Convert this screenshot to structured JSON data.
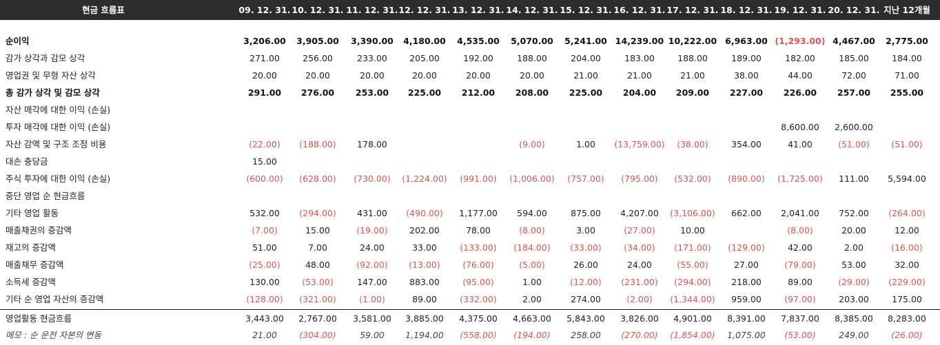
{
  "table": {
    "title": "현금 흐름표",
    "columns": [
      "09. 12. 31.",
      "10. 12. 31.",
      "11. 12. 31.",
      "12. 12. 31.",
      "13. 12. 31.",
      "14. 12. 31.",
      "15. 12. 31.",
      "16. 12. 31.",
      "17. 12. 31.",
      "18. 12. 31.",
      "19. 12. 31.",
      "20. 12. 31.",
      "지난 12개월"
    ],
    "rows": [
      {
        "label": "순이익",
        "style": "bold",
        "values": [
          "3,206.00",
          "3,905.00",
          "3,390.00",
          "4,180.00",
          "4,535.00",
          "5,070.00",
          "5,241.00",
          "14,239.00",
          "10,222.00",
          "6,963.00",
          "(1,293.00)",
          "4,467.00",
          "2,775.00"
        ]
      },
      {
        "label": "감가 상각과 감모 상각",
        "style": "normal",
        "values": [
          "271.00",
          "256.00",
          "233.00",
          "205.00",
          "192.00",
          "188.00",
          "204.00",
          "183.00",
          "188.00",
          "189.00",
          "182.00",
          "185.00",
          "184.00"
        ]
      },
      {
        "label": "영업권 및 무형 자산 상각",
        "style": "normal",
        "values": [
          "20.00",
          "20.00",
          "20.00",
          "20.00",
          "20.00",
          "20.00",
          "21.00",
          "21.00",
          "21.00",
          "38.00",
          "44.00",
          "72.00",
          "71.00"
        ]
      },
      {
        "label": "총 감가 상각 및 감모 상각",
        "style": "bold",
        "values": [
          "291.00",
          "276.00",
          "253.00",
          "225.00",
          "212.00",
          "208.00",
          "225.00",
          "204.00",
          "209.00",
          "227.00",
          "226.00",
          "257.00",
          "255.00"
        ]
      },
      {
        "label": "자산 매각에 대한 이익 (손실)",
        "style": "normal",
        "values": [
          "",
          "",
          "",
          "",
          "",
          "",
          "",
          "",
          "",
          "",
          "",
          "",
          ""
        ]
      },
      {
        "label": "투자 매각에 대한 이익 (손실)",
        "style": "normal",
        "values": [
          "",
          "",
          "",
          "",
          "",
          "",
          "",
          "",
          "",
          "",
          "8,600.00",
          "2,600.00",
          ""
        ]
      },
      {
        "label": "자산 감액 및 구조 조정 비용",
        "style": "normal",
        "values": [
          "(22.00)",
          "(188.00)",
          "178.00",
          "",
          "",
          "(9.00)",
          "1.00",
          "(13,759.00)",
          "(38.00)",
          "354.00",
          "41.00",
          "(51.00)",
          "(51.00)"
        ]
      },
      {
        "label": "대손 충당금",
        "style": "normal",
        "values": [
          "15.00",
          "",
          "",
          "",
          "",
          "",
          "",
          "",
          "",
          "",
          "",
          "",
          ""
        ]
      },
      {
        "label": "주식 투자에 대한 이익 (손실)",
        "style": "normal",
        "values": [
          "(600.00)",
          "(628.00)",
          "(730.00)",
          "(1,224.00)",
          "(991.00)",
          "(1,006.00)",
          "(757.00)",
          "(795.00)",
          "(532.00)",
          "(890.00)",
          "(1,725.00)",
          "111.00",
          "5,594.00"
        ]
      },
      {
        "label": "중단 영업 순 현금흐름",
        "style": "normal",
        "values": [
          "",
          "",
          "",
          "",
          "",
          "",
          "",
          "",
          "",
          "",
          "",
          "",
          ""
        ]
      },
      {
        "label": "기타 영업 활동",
        "style": "normal",
        "values": [
          "532.00",
          "(294.00)",
          "431.00",
          "(490.00)",
          "1,177.00",
          "594.00",
          "875.00",
          "4,207.00",
          "(3,106.00)",
          "662.00",
          "2,041.00",
          "752.00",
          "(264.00)"
        ]
      },
      {
        "label": "매출채권의 증감액",
        "style": "normal",
        "values": [
          "(7.00)",
          "15.00",
          "(19.00)",
          "202.00",
          "78.00",
          "(8.00)",
          "3.00",
          "(27.00)",
          "10.00",
          "",
          "(8.00)",
          "20.00",
          "12.00"
        ]
      },
      {
        "label": "재고의 증감액",
        "style": "normal",
        "values": [
          "51.00",
          "7.00",
          "24.00",
          "33.00",
          "(133.00)",
          "(184.00)",
          "(33.00)",
          "(34.00)",
          "(171.00)",
          "(129.00)",
          "42.00",
          "2.00",
          "(16.00)"
        ]
      },
      {
        "label": "매출채무 증감액",
        "style": "normal",
        "values": [
          "(25.00)",
          "48.00",
          "(92.00)",
          "(13.00)",
          "(76.00)",
          "(5.00)",
          "26.00",
          "24.00",
          "(55.00)",
          "27.00",
          "(79.00)",
          "53.00",
          "32.00"
        ]
      },
      {
        "label": "소득세 증감액",
        "style": "normal",
        "values": [
          "130.00",
          "(53.00)",
          "147.00",
          "883.00",
          "(95.00)",
          "1.00",
          "(12.00)",
          "(231.00)",
          "(294.00)",
          "218.00",
          "89.00",
          "(29.00)",
          "(229.00)"
        ]
      },
      {
        "label": "기타 순 영업 자산의 증감액",
        "style": "normal",
        "values": [
          "(128.00)",
          "(321.00)",
          "(1.00)",
          "89.00",
          "(332.00)",
          "2.00",
          "274.00",
          "(2.00)",
          "(1,344.00)",
          "959.00",
          "(97.00)",
          "203.00",
          "175.00"
        ]
      },
      {
        "label": "영업활동 현금흐름",
        "style": "total",
        "values": [
          "3,443.00",
          "2,767.00",
          "3,581.00",
          "3,885.00",
          "4,375.00",
          "4,663.00",
          "5,843.00",
          "3,826.00",
          "4,901.00",
          "8,391.00",
          "7,837.00",
          "8,385.00",
          "8,283.00"
        ]
      },
      {
        "label": "메모 : 순 운전 자본의 변동",
        "style": "italic",
        "values": [
          "21.00",
          "(304.00)",
          "59.00",
          "1,194.00",
          "(558.00)",
          "(194.00)",
          "258.00",
          "(270.00)",
          "(1,854.00)",
          "1,075.00",
          "(53.00)",
          "249.00",
          "(26.00)"
        ]
      }
    ]
  },
  "colors": {
    "header_bg": "#2c2c2c",
    "negative": "#d9534f"
  }
}
